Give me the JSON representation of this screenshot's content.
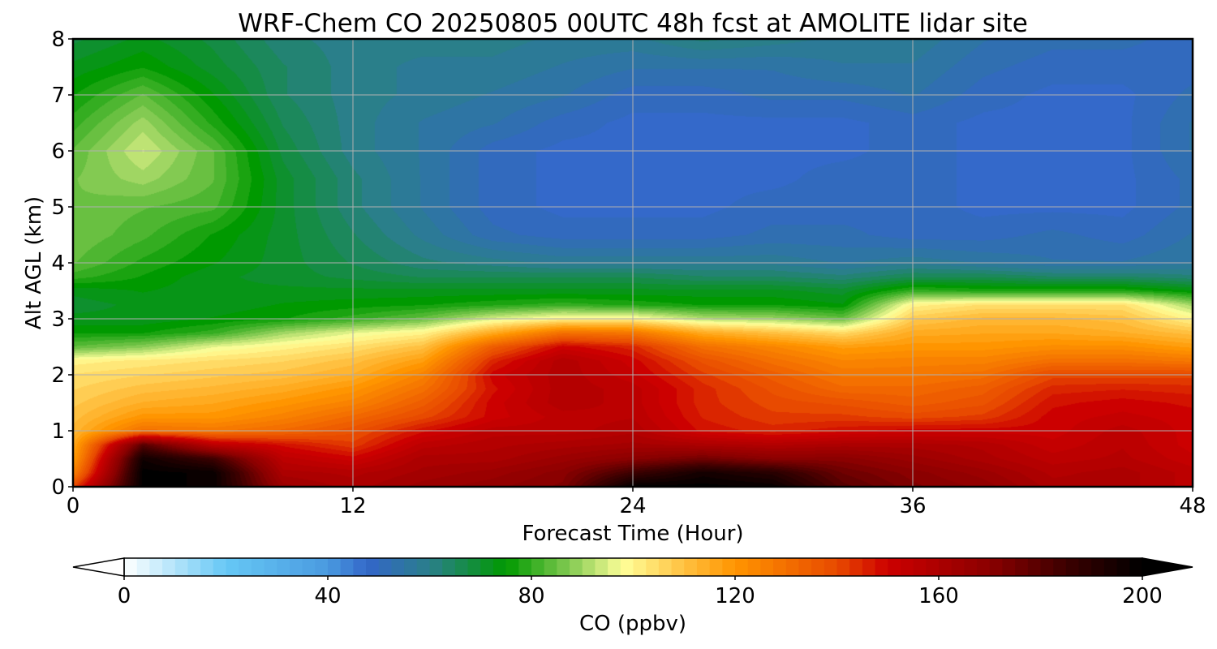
{
  "chart_data": {
    "type": "heatmap",
    "title": "WRF-Chem CO  20250805 00UTC 48h fcst at AMOLITE lidar site",
    "xlabel": "Forecast Time (Hour)",
    "ylabel": "Alt AGL (km)",
    "xlim": [
      0,
      48
    ],
    "ylim": [
      0,
      8
    ],
    "xticks": [
      0,
      12,
      24,
      36,
      48
    ],
    "yticks": [
      0,
      1,
      2,
      3,
      4,
      5,
      6,
      7,
      8
    ],
    "grid": true,
    "colorbar": {
      "label": "CO  (ppbv)",
      "orientation": "horizontal",
      "placement": "bottom",
      "vmin": 0,
      "vmax": 200,
      "ticks": [
        0,
        40,
        80,
        120,
        160,
        200
      ],
      "extend": "both",
      "stops": [
        {
          "v": 0,
          "c": "#ffffff"
        },
        {
          "v": 20,
          "c": "#66c8f5"
        },
        {
          "v": 40,
          "c": "#4a9ae0"
        },
        {
          "v": 48,
          "c": "#3366c8"
        },
        {
          "v": 60,
          "c": "#2a7f8a"
        },
        {
          "v": 75,
          "c": "#009900"
        },
        {
          "v": 88,
          "c": "#88cc55"
        },
        {
          "v": 98,
          "c": "#ffff99"
        },
        {
          "v": 110,
          "c": "#ffc040"
        },
        {
          "v": 120,
          "c": "#ff9500"
        },
        {
          "v": 140,
          "c": "#e84a00"
        },
        {
          "v": 150,
          "c": "#cc0000"
        },
        {
          "v": 170,
          "c": "#8b0000"
        },
        {
          "v": 185,
          "c": "#3c0000"
        },
        {
          "v": 200,
          "c": "#000000"
        }
      ]
    },
    "x": [
      0,
      3,
      6,
      9,
      12,
      15,
      18,
      21,
      24,
      27,
      30,
      33,
      36,
      39,
      42,
      45,
      48
    ],
    "y": [
      0,
      0.25,
      0.5,
      0.75,
      1.0,
      1.25,
      1.5,
      1.75,
      2.0,
      2.25,
      2.5,
      2.75,
      3.0,
      3.25,
      3.5,
      3.75,
      4.0,
      4.5,
      5.0,
      5.5,
      6.0,
      6.5,
      7.0,
      7.5,
      8.0
    ],
    "z": [
      [
        140,
        200,
        198,
        165,
        160,
        165,
        168,
        172,
        200,
        200,
        198,
        180,
        172,
        168,
        160,
        160,
        155
      ],
      [
        125,
        200,
        198,
        160,
        158,
        162,
        165,
        170,
        185,
        195,
        190,
        176,
        170,
        165,
        158,
        160,
        155
      ],
      [
        118,
        196,
        185,
        155,
        150,
        160,
        160,
        165,
        170,
        175,
        170,
        170,
        165,
        160,
        155,
        157,
        152
      ],
      [
        115,
        180,
        155,
        148,
        142,
        155,
        158,
        160,
        162,
        160,
        158,
        160,
        160,
        158,
        152,
        156,
        150
      ],
      [
        112,
        130,
        128,
        132,
        138,
        148,
        155,
        155,
        158,
        148,
        145,
        148,
        150,
        150,
        150,
        155,
        150
      ],
      [
        110,
        120,
        120,
        125,
        132,
        140,
        150,
        155,
        156,
        146,
        142,
        142,
        140,
        142,
        150,
        152,
        150
      ],
      [
        108,
        114,
        116,
        120,
        125,
        135,
        150,
        158,
        155,
        145,
        140,
        138,
        135,
        138,
        148,
        150,
        148
      ],
      [
        106,
        110,
        112,
        115,
        120,
        130,
        148,
        158,
        155,
        145,
        138,
        132,
        132,
        135,
        145,
        146,
        145
      ],
      [
        104,
        106,
        108,
        110,
        114,
        125,
        150,
        158,
        152,
        142,
        135,
        128,
        128,
        130,
        140,
        140,
        140
      ],
      [
        100,
        102,
        104,
        106,
        110,
        118,
        145,
        158,
        150,
        138,
        130,
        124,
        125,
        125,
        130,
        130,
        128
      ],
      [
        84,
        88,
        96,
        100,
        104,
        110,
        135,
        150,
        145,
        130,
        124,
        118,
        120,
        120,
        122,
        122,
        118
      ],
      [
        76,
        76,
        80,
        90,
        96,
        100,
        115,
        130,
        128,
        115,
        110,
        105,
        115,
        116,
        116,
        114,
        110
      ],
      [
        72,
        72,
        74,
        76,
        80,
        85,
        95,
        100,
        100,
        92,
        90,
        85,
        108,
        112,
        112,
        110,
        100
      ],
      [
        70,
        72,
        72,
        74,
        75,
        76,
        78,
        80,
        78,
        76,
        76,
        74,
        100,
        104,
        104,
        104,
        90
      ],
      [
        72,
        74,
        72,
        72,
        72,
        72,
        72,
        72,
        72,
        72,
        72,
        70,
        80,
        78,
        78,
        78,
        74
      ],
      [
        80,
        76,
        72,
        70,
        68,
        66,
        66,
        66,
        66,
        64,
        64,
        62,
        66,
        66,
        64,
        64,
        62
      ],
      [
        84,
        78,
        74,
        70,
        66,
        62,
        60,
        58,
        58,
        58,
        58,
        56,
        58,
        56,
        54,
        54,
        56
      ],
      [
        86,
        82,
        76,
        70,
        64,
        58,
        52,
        50,
        50,
        50,
        52,
        52,
        50,
        50,
        52,
        50,
        54
      ],
      [
        86,
        84,
        82,
        70,
        62,
        56,
        50,
        48,
        48,
        48,
        50,
        50,
        50,
        48,
        48,
        48,
        52
      ],
      [
        86,
        90,
        84,
        70,
        62,
        56,
        50,
        48,
        48,
        48,
        48,
        50,
        50,
        48,
        48,
        48,
        52
      ],
      [
        84,
        94,
        84,
        68,
        60,
        56,
        50,
        48,
        48,
        48,
        48,
        48,
        50,
        48,
        48,
        48,
        54
      ],
      [
        80,
        90,
        78,
        66,
        60,
        56,
        54,
        50,
        48,
        48,
        48,
        48,
        50,
        48,
        48,
        48,
        54
      ],
      [
        76,
        84,
        74,
        64,
        60,
        58,
        56,
        54,
        50,
        50,
        52,
        52,
        54,
        50,
        48,
        48,
        52
      ],
      [
        72,
        76,
        70,
        64,
        60,
        58,
        58,
        56,
        54,
        54,
        54,
        56,
        56,
        52,
        50,
        50,
        50
      ],
      [
        68,
        72,
        68,
        62,
        60,
        60,
        60,
        58,
        58,
        62,
        60,
        58,
        58,
        54,
        52,
        52,
        50
      ]
    ]
  }
}
